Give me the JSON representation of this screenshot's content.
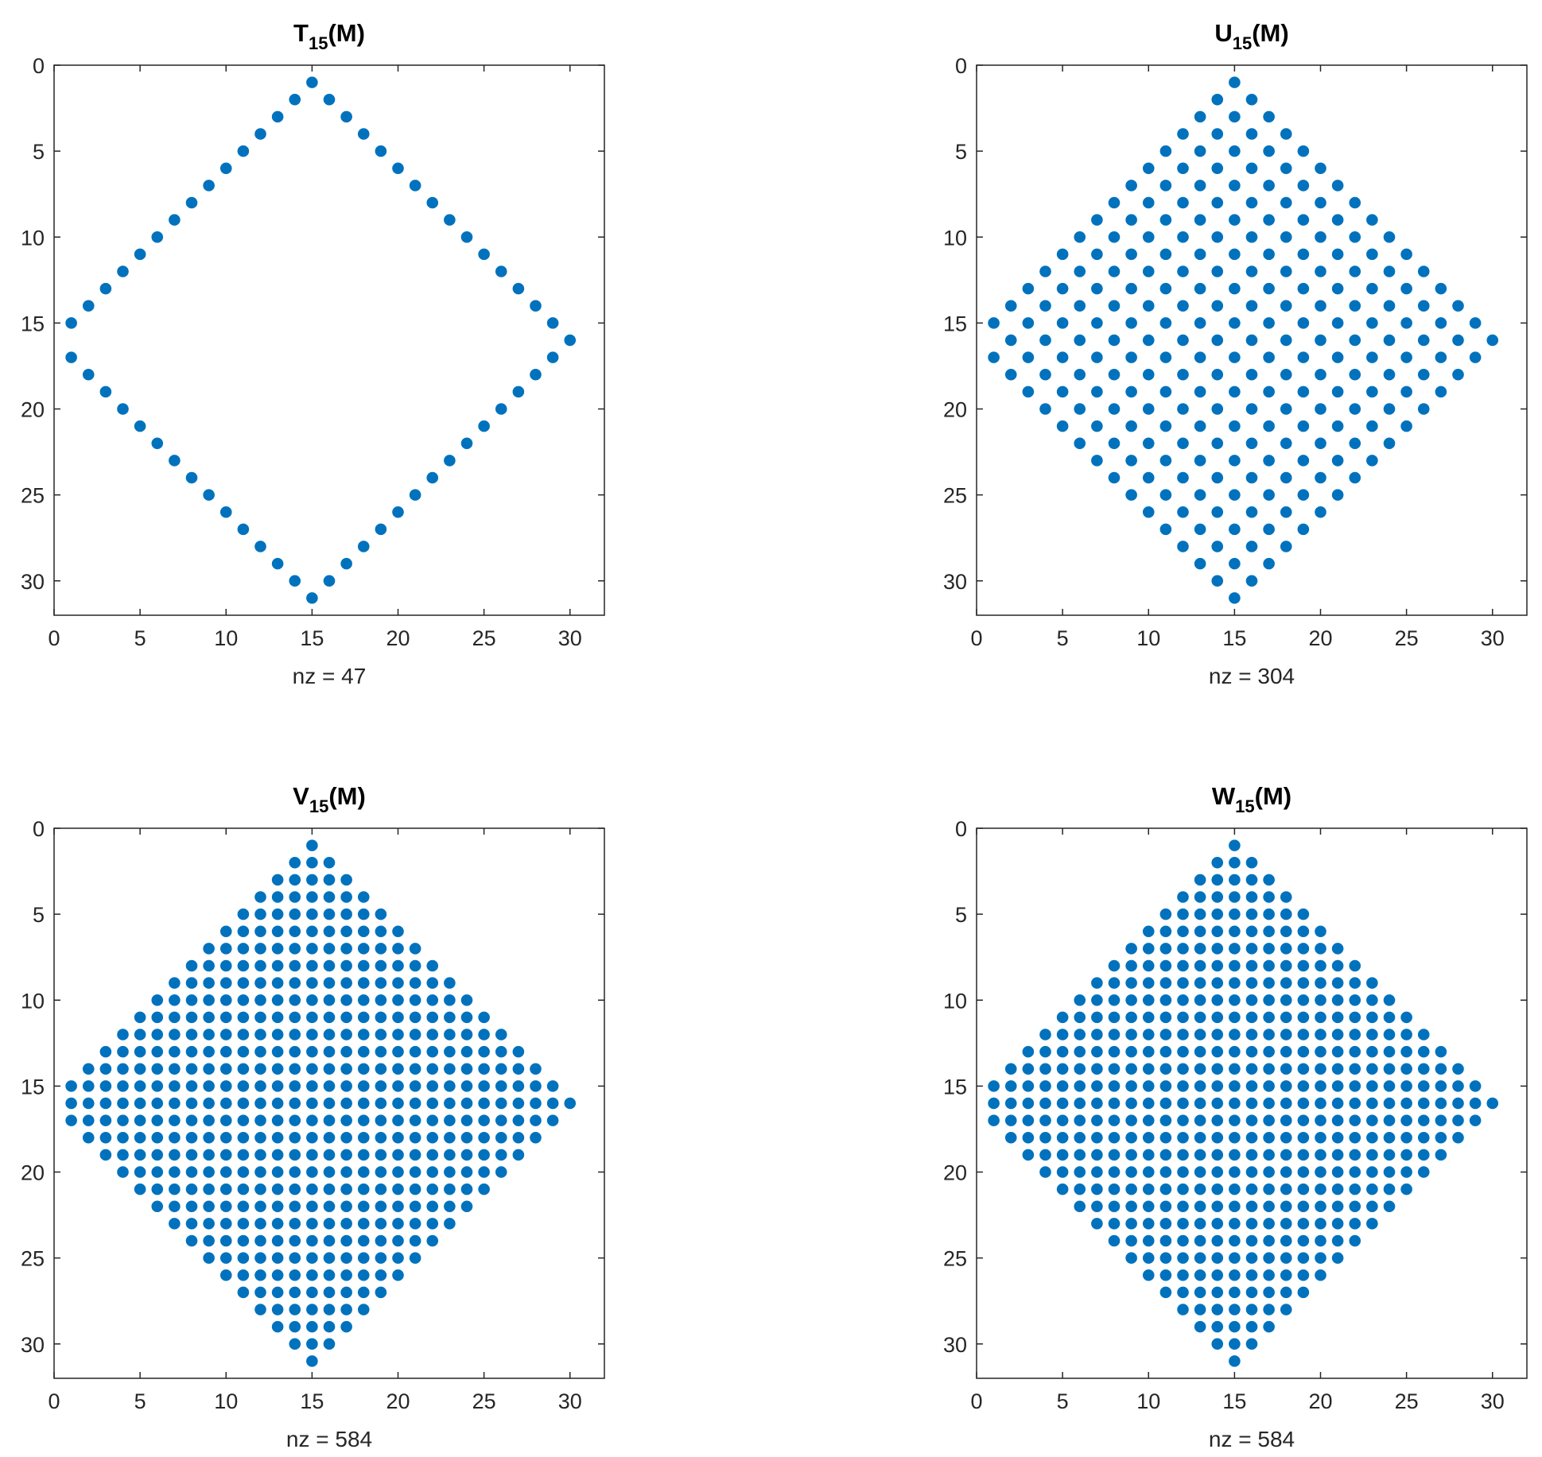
{
  "marker_color": "#0072BD",
  "chart_data": [
    {
      "type": "scatter",
      "subtype": "sparsity-pattern",
      "title": {
        "main": "T",
        "sub": "15",
        "suffix": "(M)"
      },
      "xlabel": "nz = 47",
      "xlim": [
        0,
        32
      ],
      "ylim": [
        0,
        32
      ],
      "y_reversed": true,
      "xticks": [
        0,
        5,
        10,
        15,
        20,
        25,
        30
      ],
      "yticks": [
        0,
        5,
        10,
        15,
        20,
        25,
        30
      ],
      "grid": false,
      "pattern": {
        "rule": "boundary",
        "n": 15,
        "rows": 31,
        "cols": 31
      }
    },
    {
      "type": "scatter",
      "subtype": "sparsity-pattern",
      "title": {
        "main": "U",
        "sub": "15",
        "suffix": "(M)"
      },
      "xlabel": "nz = 304",
      "xlim": [
        0,
        32
      ],
      "ylim": [
        0,
        32
      ],
      "y_reversed": true,
      "xticks": [
        0,
        5,
        10,
        15,
        20,
        25,
        30
      ],
      "yticks": [
        0,
        5,
        10,
        15,
        20,
        25,
        30
      ],
      "grid": false,
      "pattern": {
        "rule": "checkerboard",
        "n": 15,
        "rows": 31,
        "cols": 31
      }
    },
    {
      "type": "scatter",
      "subtype": "sparsity-pattern",
      "title": {
        "main": "V",
        "sub": "15",
        "suffix": "(M)"
      },
      "xlabel": "nz = 584",
      "xlim": [
        0,
        32
      ],
      "ylim": [
        0,
        32
      ],
      "y_reversed": true,
      "xticks": [
        0,
        5,
        10,
        15,
        20,
        25,
        30
      ],
      "yticks": [
        0,
        5,
        10,
        15,
        20,
        25,
        30
      ],
      "grid": false,
      "pattern": {
        "rule": "filled",
        "n": 15,
        "rows": 31,
        "cols": 31
      }
    },
    {
      "type": "scatter",
      "subtype": "sparsity-pattern",
      "title": {
        "main": "W",
        "sub": "15",
        "suffix": "(M)"
      },
      "xlabel": "nz = 584",
      "xlim": [
        0,
        32
      ],
      "ylim": [
        0,
        32
      ],
      "y_reversed": true,
      "xticks": [
        0,
        5,
        10,
        15,
        20,
        25,
        30
      ],
      "yticks": [
        0,
        5,
        10,
        15,
        20,
        25,
        30
      ],
      "grid": false,
      "pattern": {
        "rule": "filled",
        "n": 15,
        "rows": 31,
        "cols": 31
      }
    }
  ]
}
